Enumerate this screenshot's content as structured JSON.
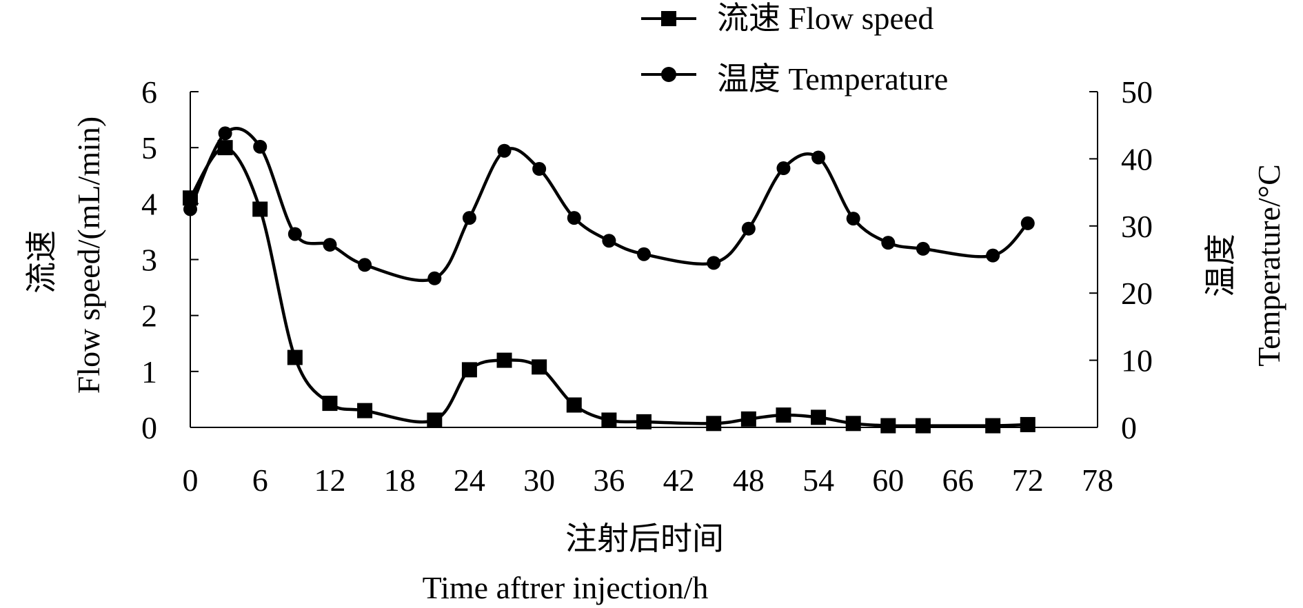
{
  "chart_data": {
    "type": "line",
    "x_axis": {
      "label_cn": "注射后时间",
      "label_en": "Time aftrer injection/h",
      "ticks": [
        0,
        6,
        12,
        18,
        24,
        30,
        36,
        42,
        48,
        54,
        60,
        66,
        72,
        78
      ],
      "range": [
        0,
        78
      ]
    },
    "y_left": {
      "label_cn": "流速",
      "label_en": "Flow speed/(mL/min)",
      "ticks": [
        0,
        1,
        2,
        3,
        4,
        5,
        6
      ],
      "range": [
        0,
        6
      ]
    },
    "y_right": {
      "label_cn": "温度",
      "label_en": "Temperature/°C",
      "ticks": [
        0,
        10,
        20,
        30,
        40,
        50
      ],
      "range": [
        0,
        50
      ]
    },
    "legend_position": "top-right",
    "grid": false,
    "series": [
      {
        "name": "流速 Flow speed",
        "axis": "left",
        "marker": "square",
        "color": "#000000",
        "x": [
          0,
          3,
          6,
          9,
          12,
          15,
          21,
          24,
          27,
          30,
          33,
          36,
          39,
          45,
          48,
          51,
          54,
          57,
          60,
          63,
          69,
          72
        ],
        "values": [
          4.1,
          5.0,
          3.9,
          1.25,
          0.43,
          0.3,
          0.13,
          1.03,
          1.2,
          1.08,
          0.4,
          0.13,
          0.1,
          0.07,
          0.15,
          0.22,
          0.18,
          0.07,
          0.03,
          0.03,
          0.03,
          0.05
        ]
      },
      {
        "name": "温度 Temperature",
        "axis": "right",
        "marker": "circle",
        "color": "#000000",
        "x": [
          0,
          3,
          6,
          9,
          12,
          15,
          21,
          24,
          27,
          30,
          33,
          36,
          39,
          45,
          48,
          51,
          54,
          57,
          60,
          63,
          69,
          72
        ],
        "values": [
          32.5,
          43.8,
          41.8,
          28.8,
          27.2,
          24.2,
          22.2,
          31.2,
          41.2,
          38.5,
          31.2,
          27.8,
          25.8,
          24.5,
          29.6,
          38.6,
          40.2,
          31.1,
          27.5,
          26.6,
          25.6,
          30.4
        ]
      }
    ]
  }
}
